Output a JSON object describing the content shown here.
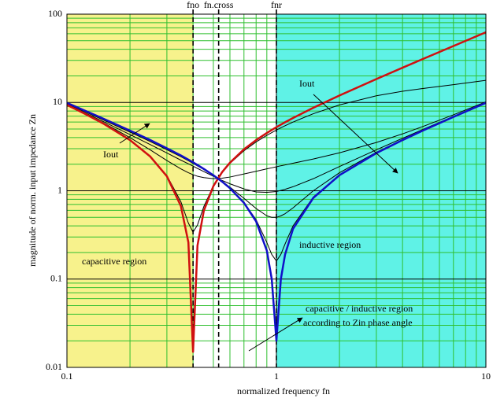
{
  "chart_data": {
    "type": "line",
    "xlabel": "normalized frequency fn",
    "ylabel": "magnitude of norm. input impedance Zn",
    "xscale": "log",
    "yscale": "log",
    "xlim": [
      0.1,
      10
    ],
    "ylim": [
      0.01,
      100
    ],
    "xticks": [
      0.1,
      1,
      10
    ],
    "yticks": [
      0.01,
      0.1,
      1,
      10,
      100
    ],
    "grid": true,
    "minor_grid": true,
    "grid_color": "#2fbf2f",
    "major_grid_color": "#000000",
    "regions": [
      {
        "from": 0.1,
        "to": 0.4,
        "color": "#f7f28c"
      },
      {
        "from": 0.4,
        "to": 1,
        "color": "#ffffff"
      },
      {
        "from": 1,
        "to": 10,
        "color": "#5ff2e6"
      }
    ],
    "markers": [
      {
        "label": "fno",
        "value": 0.4
      },
      {
        "label": "fn.cross",
        "value": 0.53
      },
      {
        "label": "fnr",
        "value": 1
      }
    ],
    "annotations": [
      "Iout",
      "Iout",
      "capacitive region",
      "inductive region",
      "capacitive / inductive region",
      "according to Zin phase angle"
    ],
    "x": [
      0.1,
      0.12,
      0.15,
      0.2,
      0.25,
      0.3,
      0.35,
      0.38,
      0.4,
      0.42,
      0.45,
      0.5,
      0.55,
      0.6,
      0.7,
      0.8,
      0.9,
      0.95,
      1,
      1.05,
      1.1,
      1.2,
      1.5,
      2,
      3,
      4,
      5,
      7,
      10
    ],
    "series": [
      {
        "color": "#000000",
        "linewidth": 1,
        "values": [
          9.38,
          7.58,
          5.73,
          3.76,
          2.45,
          1.49,
          0.75,
          0.43,
          0.34,
          0.41,
          0.66,
          1.14,
          1.6,
          2.04,
          2.84,
          3.57,
          4.24,
          4.56,
          4.87,
          5.17,
          5.45,
          6.0,
          7.46,
          9.38,
          11.9,
          13.4,
          14.4,
          15.9,
          17.8
        ]
      },
      {
        "color": "#000000",
        "linewidth": 1,
        "values": [
          9.41,
          7.64,
          5.84,
          4.0,
          2.9,
          2.2,
          1.77,
          1.6,
          1.52,
          1.46,
          1.41,
          1.37,
          1.39,
          1.43,
          1.55,
          1.66,
          1.77,
          1.82,
          1.87,
          1.92,
          1.96,
          2.05,
          2.29,
          2.69,
          3.52,
          4.41,
          5.34,
          7.25,
          10.17
        ]
      },
      {
        "color": "#000000",
        "linewidth": 1,
        "values": [
          9.49,
          7.77,
          6.04,
          4.33,
          3.33,
          2.68,
          2.22,
          2.02,
          1.9,
          1.79,
          1.65,
          1.46,
          1.31,
          1.2,
          1.05,
          0.97,
          0.96,
          0.97,
          0.98,
          1.01,
          1.04,
          1.11,
          1.37,
          1.88,
          2.91,
          3.93,
          4.94,
          6.96,
          9.97
        ]
      },
      {
        "color": "#000000",
        "linewidth": 1,
        "values": [
          9.65,
          7.98,
          6.3,
          4.62,
          3.61,
          2.92,
          2.43,
          2.19,
          2.04,
          1.91,
          1.74,
          1.49,
          1.28,
          1.1,
          0.82,
          0.63,
          0.52,
          0.5,
          0.5,
          0.52,
          0.55,
          0.64,
          1.0,
          1.6,
          2.73,
          3.8,
          4.84,
          6.88,
          9.92
        ]
      },
      {
        "color": "#000000",
        "linewidth": 1,
        "values": [
          9.86,
          8.18,
          6.49,
          4.78,
          3.73,
          3.02,
          2.5,
          2.24,
          2.09,
          1.96,
          1.77,
          1.5,
          1.27,
          1.07,
          0.74,
          0.47,
          0.26,
          0.19,
          0.16,
          0.19,
          0.25,
          0.4,
          0.85,
          1.51,
          2.67,
          3.75,
          4.8,
          6.86,
          9.9
        ]
      },
      {
        "color": "#d01010",
        "linewidth": 2.5,
        "values": [
          9.375,
          7.58,
          5.73,
          3.75,
          2.44,
          1.46,
          0.67,
          0.26,
          0.015,
          0.24,
          0.59,
          1.13,
          1.62,
          2.08,
          2.95,
          3.75,
          4.51,
          4.88,
          5.25,
          5.61,
          5.97,
          6.67,
          8.71,
          12.0,
          18.4,
          24.75,
          31.05,
          43.6,
          62.4
        ]
      },
      {
        "color": "#1010c8",
        "linewidth": 2.5,
        "values": [
          9.9,
          8.21,
          6.52,
          4.8,
          3.75,
          3.03,
          2.51,
          2.25,
          2.1,
          1.96,
          1.77,
          1.5,
          1.27,
          1.07,
          0.73,
          0.45,
          0.21,
          0.1,
          0.02,
          0.1,
          0.19,
          0.37,
          0.83,
          1.5,
          2.67,
          3.75,
          4.8,
          6.86,
          9.9
        ]
      }
    ]
  }
}
